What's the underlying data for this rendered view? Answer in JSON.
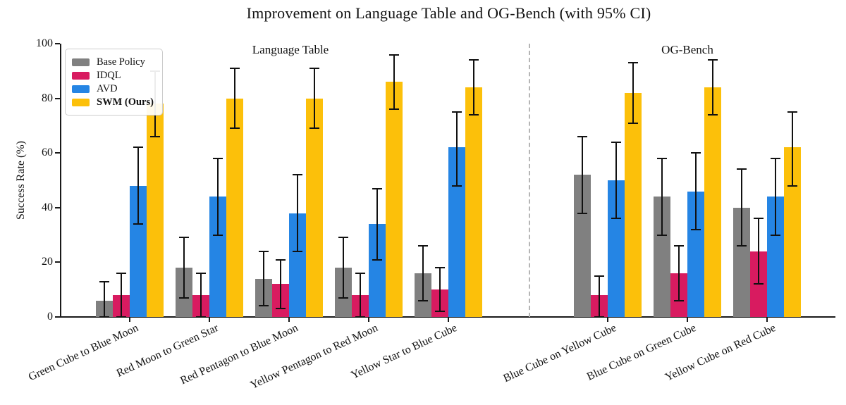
{
  "chart_data": {
    "type": "bar",
    "title": "Improvement on Language Table and OG-Bench (with 95% CI)",
    "ylabel": "Success Rate (%)",
    "ylim": [
      0,
      100
    ],
    "yticks": [
      0,
      20,
      40,
      60,
      80,
      100
    ],
    "grid": false,
    "legend_position": "upper-left",
    "error_bars": "95% CI",
    "sections": [
      {
        "label": "Language Table"
      },
      {
        "label": "OG-Bench"
      }
    ],
    "series": [
      {
        "name": "Base Policy",
        "color": "#808080",
        "bold": false
      },
      {
        "name": "IDQL",
        "color": "#D81B60",
        "bold": false
      },
      {
        "name": "AVD",
        "color": "#2585E4",
        "bold": false
      },
      {
        "name": "SWM (Ours)",
        "color": "#FCC00A",
        "bold": true
      }
    ],
    "groups": [
      {
        "label": "Green Cube to Blue Moon",
        "section": 0,
        "values": [
          6,
          8,
          48,
          78
        ],
        "ci_low": [
          0,
          0,
          34,
          66
        ],
        "ci_high": [
          13,
          16,
          62,
          90
        ]
      },
      {
        "label": "Red Moon to Green Star",
        "section": 0,
        "values": [
          18,
          8,
          44,
          80
        ],
        "ci_low": [
          7,
          0,
          30,
          69
        ],
        "ci_high": [
          29,
          16,
          58,
          91
        ]
      },
      {
        "label": "Red Pentagon to Blue Moon",
        "section": 0,
        "values": [
          14,
          12,
          38,
          80
        ],
        "ci_low": [
          4,
          3,
          24,
          69
        ],
        "ci_high": [
          24,
          21,
          52,
          91
        ]
      },
      {
        "label": "Yellow Pentagon to Red Moon",
        "section": 0,
        "values": [
          18,
          8,
          34,
          86
        ],
        "ci_low": [
          7,
          0,
          21,
          76
        ],
        "ci_high": [
          29,
          16,
          47,
          96
        ]
      },
      {
        "label": "Yellow Star to Blue Cube",
        "section": 0,
        "values": [
          16,
          10,
          62,
          84
        ],
        "ci_low": [
          6,
          2,
          48,
          74
        ],
        "ci_high": [
          26,
          18,
          75,
          94
        ]
      },
      {
        "label": "Blue Cube on Yellow Cube",
        "section": 1,
        "values": [
          52,
          8,
          50,
          82
        ],
        "ci_low": [
          38,
          0,
          36,
          71
        ],
        "ci_high": [
          66,
          15,
          64,
          93
        ]
      },
      {
        "label": "Blue Cube on Green Cube",
        "section": 1,
        "values": [
          44,
          16,
          46,
          84
        ],
        "ci_low": [
          30,
          6,
          32,
          74
        ],
        "ci_high": [
          58,
          26,
          60,
          94
        ]
      },
      {
        "label": "Yellow Cube on Red Cube",
        "section": 1,
        "values": [
          40,
          24,
          44,
          62
        ],
        "ci_low": [
          26,
          12,
          30,
          48
        ],
        "ci_high": [
          54,
          36,
          58,
          75
        ]
      }
    ]
  }
}
